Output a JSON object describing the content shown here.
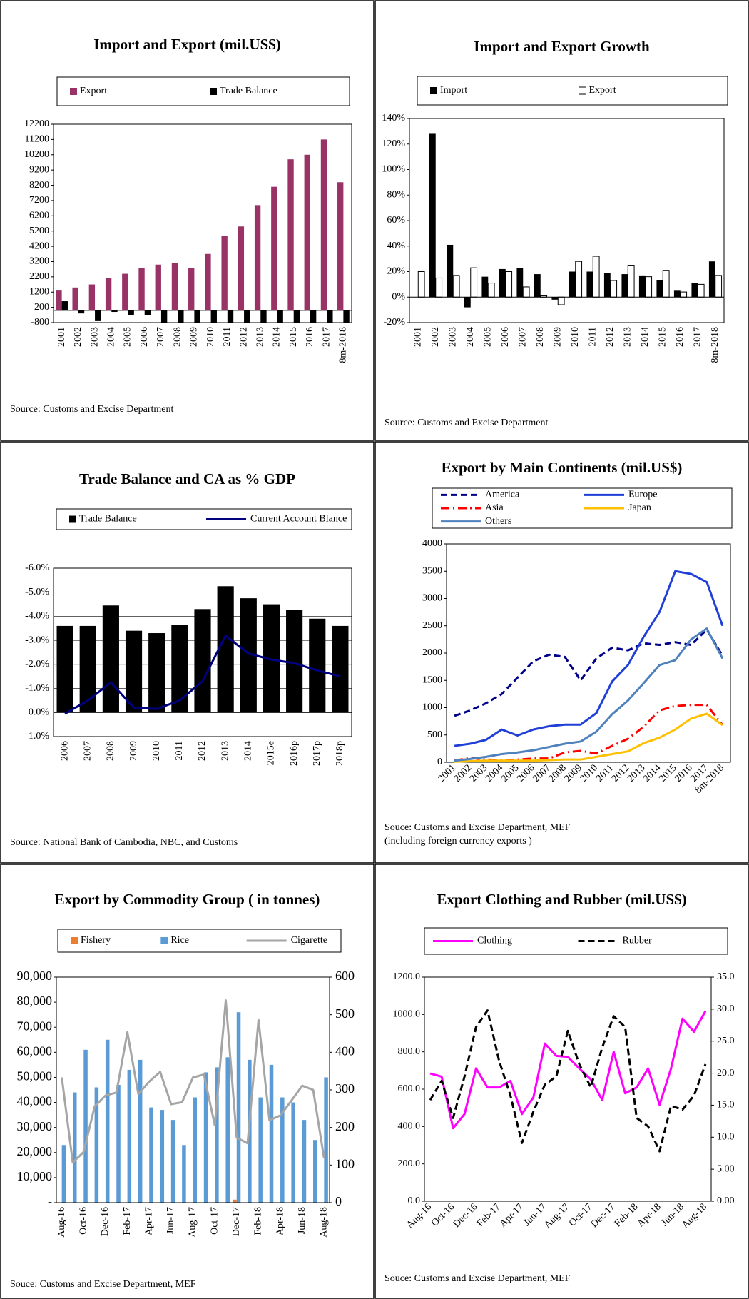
{
  "chart_data": [
    {
      "type": "bar",
      "title": "Import and Export (mil.US$)",
      "categories": [
        "2001",
        "2002",
        "2003",
        "2004",
        "2005",
        "2006",
        "2007",
        "2008",
        "2009",
        "2010",
        "2011",
        "2012",
        "2013",
        "2014",
        "2015",
        "2016",
        "2017",
        "8m-2018"
      ],
      "series": [
        {
          "name": "Export",
          "type": "bar",
          "color": "#993366",
          "values": [
            1300,
            1500,
            1700,
            2100,
            2400,
            2800,
            3000,
            3100,
            2800,
            3700,
            4900,
            5500,
            6900,
            8100,
            9900,
            10200,
            11200,
            8400
          ]
        },
        {
          "name": "Trade Balance",
          "type": "bar",
          "color": "#000000",
          "values": [
            600,
            -200,
            -700,
            -100,
            -300,
            -300,
            -800,
            -800,
            -800,
            -800,
            -800,
            -800,
            -800,
            -800,
            -800,
            -800,
            -800,
            -800
          ]
        }
      ],
      "ylim": [
        -800,
        12200
      ],
      "yticks": [
        -800,
        200,
        1200,
        2200,
        3200,
        4200,
        5200,
        6200,
        7200,
        8200,
        9200,
        10200,
        11200,
        12200
      ],
      "grid": false,
      "source": [
        "Source: Customs and Excise Department"
      ]
    },
    {
      "type": "bar",
      "title": "Import and Export Growth",
      "categories": [
        "2001",
        "2002",
        "2003",
        "2004",
        "2005",
        "2006",
        "2007",
        "2008",
        "2009",
        "2010",
        "2011",
        "2012",
        "2013",
        "2014",
        "2015",
        "2016",
        "2017",
        "8m-2018"
      ],
      "series": [
        {
          "name": "Import",
          "type": "bar",
          "color": "#000000",
          "values": [
            null,
            128,
            41,
            -8,
            16,
            22,
            23,
            18,
            -2,
            20,
            20,
            19,
            18,
            17,
            13,
            5,
            11,
            28
          ]
        },
        {
          "name": "Export",
          "type": "bar",
          "color": "#ffffff",
          "values": [
            20,
            15,
            17,
            23,
            11,
            20,
            8,
            1,
            -6,
            28,
            32,
            13,
            25,
            16,
            21,
            4,
            10,
            17
          ]
        }
      ],
      "ylim": [
        -20,
        140
      ],
      "yticks": [
        {
          "value": -20,
          "label": "-20%"
        },
        {
          "value": 0,
          "label": "0%"
        },
        {
          "value": 20,
          "label": "20%"
        },
        {
          "value": 40,
          "label": "40%"
        },
        {
          "value": 60,
          "label": "60%"
        },
        {
          "value": 80,
          "label": "80%"
        },
        {
          "value": 100,
          "label": "100%"
        },
        {
          "value": 120,
          "label": "120%"
        },
        {
          "value": 140,
          "label": "140%"
        }
      ],
      "grid": false,
      "source": [
        "Source: Customs and Excise Department"
      ]
    },
    {
      "type": "combo",
      "title": "Trade Balance and CA as % GDP",
      "categories": [
        "2006",
        "2007",
        "2008",
        "2009",
        "2010",
        "2011",
        "2012",
        "2013",
        "2014",
        "2015e",
        "2016p",
        "2017p",
        "2018p"
      ],
      "series": [
        {
          "name": "Trade Balance",
          "type": "bar",
          "color": "#000000",
          "values": [
            -3.6,
            -3.6,
            -4.45,
            -3.4,
            -3.3,
            -3.65,
            -4.3,
            -5.25,
            -4.75,
            -4.5,
            -4.25,
            -3.9,
            -3.6
          ]
        },
        {
          "name": "Current Account  Blance",
          "type": "line",
          "color": "#000080",
          "values": [
            0.05,
            -0.5,
            -1.25,
            -0.2,
            -0.15,
            -0.5,
            -1.3,
            -3.2,
            -2.45,
            -2.2,
            -2.05,
            -1.75,
            -1.5
          ]
        }
      ],
      "ylim": [
        1,
        -6
      ],
      "yticks": [
        {
          "value": -6,
          "label": "-6.0%"
        },
        {
          "value": -5,
          "label": "-5.0%"
        },
        {
          "value": -4,
          "label": "-4.0%"
        },
        {
          "value": -3,
          "label": "-3.0%"
        },
        {
          "value": -2,
          "label": "-2.0%"
        },
        {
          "value": -1,
          "label": "-1.0%"
        },
        {
          "value": 0,
          "label": "0.0%"
        },
        {
          "value": 1,
          "label": "1.0%"
        }
      ],
      "grid": true,
      "source": [
        "Source: National Bank of Cambodia, NBC, and Customs"
      ]
    },
    {
      "type": "line",
      "title": "Export by Main Continents (mil.US$)",
      "categories": [
        "2001",
        "2002",
        "2003",
        "2004",
        "2005",
        "2006",
        "2007",
        "2008",
        "2009",
        "2010",
        "2011",
        "2012",
        "2013",
        "2014",
        "2015",
        "2016",
        "2017",
        "8m-2018"
      ],
      "series": [
        {
          "name": "America",
          "type": "line",
          "color": "#00008b",
          "dash": "dashed",
          "values": [
            850,
            950,
            1080,
            1250,
            1550,
            1850,
            1970,
            1930,
            1500,
            1900,
            2100,
            2050,
            2180,
            2150,
            2200,
            2150,
            2430,
            1950
          ]
        },
        {
          "name": "Europe",
          "type": "line",
          "color": "#1f3fd6",
          "values": [
            300,
            340,
            410,
            600,
            490,
            600,
            660,
            690,
            690,
            900,
            1480,
            1780,
            2300,
            2750,
            3500,
            3450,
            3300,
            2500
          ]
        },
        {
          "name": "Asia",
          "type": "line",
          "color": "#ff0000",
          "dash": "dashdot",
          "values": [
            30,
            80,
            50,
            40,
            50,
            70,
            70,
            180,
            210,
            160,
            300,
            430,
            650,
            950,
            1030,
            1050,
            1050,
            680
          ]
        },
        {
          "name": "Japan",
          "type": "line",
          "color": "#ffc000",
          "values": [
            10,
            20,
            30,
            30,
            30,
            30,
            40,
            50,
            50,
            100,
            150,
            200,
            350,
            450,
            600,
            800,
            890,
            680
          ]
        },
        {
          "name": "Others",
          "type": "line",
          "color": "#4f81bd",
          "values": [
            30,
            60,
            100,
            150,
            180,
            220,
            280,
            340,
            380,
            560,
            880,
            1130,
            1450,
            1780,
            1870,
            2250,
            2450,
            1900
          ]
        }
      ],
      "ylim": [
        0,
        4000
      ],
      "yticks": [
        0,
        500,
        1000,
        1500,
        2000,
        2500,
        3000,
        3500,
        4000
      ],
      "grid": false,
      "source": [
        "Souce: Customs and Excise Department, MEF",
        "(including  foreign currency exports )"
      ]
    },
    {
      "type": "combo",
      "title": "Export by Commodity Group ( in tonnes)",
      "categories": [
        "Aug-16",
        null,
        "Oct-16",
        null,
        "Dec-16",
        null,
        "Feb-17",
        null,
        "Apr-17",
        null,
        "Jun-17",
        null,
        "Aug-17",
        null,
        "Oct-17",
        null,
        "Dec-17",
        null,
        "Feb-18",
        null,
        "Apr-18",
        null,
        "Jun-18",
        null,
        "Aug-18"
      ],
      "series": [
        {
          "name": "Fishery",
          "type": "bar",
          "color": "#ed7d31",
          "values": [
            0,
            0,
            0,
            0,
            0,
            0,
            0,
            0,
            0,
            0,
            0,
            0,
            0,
            0,
            0,
            0,
            1200,
            0,
            0,
            0,
            0,
            0,
            0,
            0,
            0
          ]
        },
        {
          "name": "Rice",
          "type": "bar",
          "color": "#5b9bd5",
          "values": [
            23000,
            44000,
            61000,
            46000,
            65000,
            47000,
            53000,
            57000,
            38000,
            37000,
            33000,
            23000,
            42000,
            52000,
            54000,
            58000,
            76000,
            57000,
            42000,
            55000,
            42000,
            40000,
            33000,
            25000,
            50000
          ]
        },
        {
          "name": "Cigarette",
          "type": "line",
          "axis": "y2",
          "color": "#a5a5a5",
          "values": [
            333,
            107,
            135,
            256,
            285,
            293,
            453,
            289,
            322,
            348,
            262,
            267,
            333,
            341,
            206,
            538,
            173,
            158,
            486,
            219,
            232,
            271,
            311,
            300,
            118
          ]
        }
      ],
      "ylim": [
        0,
        90000
      ],
      "yticks": [
        {
          "value": 0,
          "label": "-"
        },
        {
          "value": 10000,
          "label": "10,000"
        },
        {
          "value": 20000,
          "label": "20,000"
        },
        {
          "value": 30000,
          "label": "30,000"
        },
        {
          "value": 40000,
          "label": "40,000"
        },
        {
          "value": 50000,
          "label": "50,000"
        },
        {
          "value": 60000,
          "label": "60,000"
        },
        {
          "value": 70000,
          "label": "70,000"
        },
        {
          "value": 80000,
          "label": "80,000"
        },
        {
          "value": 90000,
          "label": "90,000"
        }
      ],
      "y2lim": [
        0,
        600
      ],
      "y2ticks": [
        0,
        100,
        200,
        300,
        400,
        500,
        600
      ],
      "grid": false,
      "source": [
        "Souce: Customs and Excise Department, MEF"
      ]
    },
    {
      "type": "line",
      "title": "Export Clothing and Rubber (mil.US$)",
      "categories": [
        "Aug-16",
        null,
        "Oct-16",
        null,
        "Dec-16",
        null,
        "Feb-17",
        null,
        "Apr-17",
        null,
        "Jun-17",
        null,
        "Aug-17",
        null,
        "Oct-17",
        null,
        "Dec-17",
        null,
        "Feb-18",
        null,
        "Apr-18",
        null,
        "Jun-18",
        null,
        "Aug-18"
      ],
      "series": [
        {
          "name": "Clothing",
          "type": "line",
          "color": "#ff00ff",
          "values": [
            684,
            667,
            391,
            467,
            711,
            609,
            609,
            644,
            467,
            556,
            844,
            778,
            773,
            711,
            653,
            542,
            800,
            578,
            609,
            711,
            516,
            711,
            978,
            907,
            1018
          ]
        },
        {
          "name": "Rubber",
          "type": "line",
          "axis": "y2",
          "color": "#000000",
          "dash": "dashed",
          "values": [
            15.8,
            18.8,
            13.0,
            19.5,
            27.2,
            29.8,
            22.0,
            16.5,
            9.1,
            14.0,
            18.2,
            19.5,
            26.6,
            21.4,
            17.8,
            24.0,
            28.9,
            27.2,
            13.0,
            11.7,
            7.8,
            14.9,
            14.3,
            16.5,
            21.4
          ]
        }
      ],
      "ylim": [
        0,
        1200
      ],
      "yticks": [
        {
          "value": 0,
          "label": "0.0"
        },
        {
          "value": 200,
          "label": "200.0"
        },
        {
          "value": 400,
          "label": "400.0"
        },
        {
          "value": 600,
          "label": "600.0"
        },
        {
          "value": 800,
          "label": "800.0"
        },
        {
          "value": 1000,
          "label": "1000.0"
        },
        {
          "value": 1200,
          "label": "1200.0"
        }
      ],
      "y2lim": [
        0,
        35
      ],
      "y2ticks": [
        {
          "value": 0,
          "label": "0.00"
        },
        {
          "value": 5,
          "label": "5.00"
        },
        {
          "value": 10,
          "label": "10.0"
        },
        {
          "value": 15,
          "label": "15.0"
        },
        {
          "value": 20,
          "label": "20.0"
        },
        {
          "value": 25,
          "label": "25.0"
        },
        {
          "value": 30,
          "label": "30.0"
        },
        {
          "value": 35,
          "label": "35.0"
        }
      ],
      "grid": false,
      "source": [
        "Souce: Customs and Excise Department, MEF"
      ]
    }
  ]
}
